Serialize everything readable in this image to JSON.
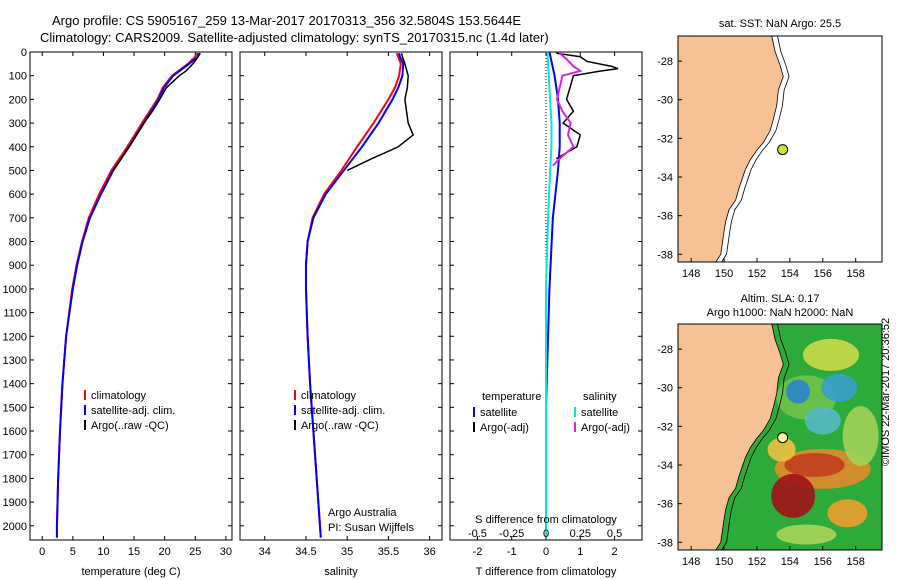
{
  "header": {
    "line1": "Argo profile: CS 5905167_259 13-Mar-2017 20170313_356 32.5804S 153.5644E",
    "line2": "Climatology: CARS2009. Satellite-adjusted climatology: synTS_20170315.nc (1.4d later)"
  },
  "colors": {
    "climatology": "#ff0000",
    "satellite": "#0000ff",
    "argo": "#000000",
    "sal_satellite": "#00e5e5",
    "sal_argo": "#e020e0",
    "land": "#f7c196",
    "map_bg": "#ffffff"
  },
  "chart_data": [
    {
      "type": "line",
      "xlabel": "temperature (deg C)",
      "ylabel": "",
      "xlim": [
        -2,
        31
      ],
      "ylim": [
        2060,
        0
      ],
      "x_ticks": [
        "0",
        "5",
        "10",
        "15",
        "20",
        "25",
        "30"
      ],
      "y_ticks": [
        "0",
        "100",
        "200",
        "300",
        "400",
        "500",
        "600",
        "700",
        "800",
        "900",
        "1000",
        "1100",
        "1200",
        "1300",
        "1400",
        "1500",
        "1600",
        "1700",
        "1800",
        "1900",
        "2000"
      ],
      "legend": [
        "climatology",
        "satellite-adj. clim.",
        "Argo(..raw -QC)"
      ],
      "series": [
        {
          "name": "climatology",
          "color": "red",
          "depth": [
            5,
            20,
            50,
            100,
            150,
            200,
            300,
            400,
            500,
            600,
            700,
            800,
            900,
            1000,
            1200,
            1400,
            1600,
            1800,
            2000,
            2050
          ],
          "values": [
            25.2,
            25.0,
            23.8,
            21.2,
            19.7,
            18.8,
            16.3,
            13.9,
            11.3,
            9.3,
            7.6,
            6.5,
            5.6,
            4.9,
            3.9,
            3.3,
            2.9,
            2.6,
            2.4,
            2.4
          ]
        },
        {
          "name": "satellite-adj. clim.",
          "color": "blue",
          "depth": [
            5,
            20,
            50,
            100,
            150,
            200,
            300,
            400,
            500,
            600,
            700,
            800,
            900,
            1000,
            1200,
            1400,
            1600,
            1800,
            2000,
            2050
          ],
          "values": [
            25.8,
            25.4,
            24.0,
            21.4,
            19.9,
            19.0,
            16.6,
            14.2,
            11.6,
            9.6,
            7.8,
            6.6,
            5.7,
            5.0,
            3.9,
            3.3,
            2.9,
            2.6,
            2.4,
            2.4
          ]
        },
        {
          "name": "Argo(..raw -QC)",
          "color": "black",
          "depth": [
            5,
            20,
            50,
            80,
            100,
            150,
            200,
            250,
            300,
            350,
            400,
            450,
            500
          ],
          "values": [
            25.4,
            25.5,
            24.6,
            23.5,
            22.4,
            20.3,
            19.2,
            18.0,
            16.6,
            15.4,
            14.2,
            12.9,
            11.6
          ]
        }
      ]
    },
    {
      "type": "line",
      "xlabel": "salinity",
      "xlim": [
        33.7,
        36.15
      ],
      "ylim": [
        2060,
        0
      ],
      "x_ticks": [
        "34",
        "34.5",
        "35",
        "35.5",
        "36"
      ],
      "legend": [
        "climatology",
        "satellite-adj. clim.",
        "Argo(..raw -QC)"
      ],
      "annotation": [
        "Argo Australia",
        "PI: Susan Wijffels"
      ],
      "series": [
        {
          "name": "climatology",
          "color": "red",
          "depth": [
            5,
            20,
            50,
            100,
            150,
            200,
            300,
            400,
            500,
            600,
            700,
            800,
            900,
            1000,
            1200,
            1400,
            1600,
            1800,
            2000,
            2050
          ],
          "values": [
            35.6,
            35.62,
            35.65,
            35.63,
            35.58,
            35.5,
            35.32,
            35.12,
            34.93,
            34.72,
            34.58,
            34.52,
            34.5,
            34.5,
            34.52,
            34.55,
            34.59,
            34.63,
            34.67,
            34.68
          ]
        },
        {
          "name": "satellite-adj. clim.",
          "color": "blue",
          "depth": [
            5,
            20,
            50,
            100,
            150,
            200,
            300,
            400,
            500,
            600,
            700,
            800,
            900,
            1000,
            1200,
            1400,
            1600,
            1800,
            2000,
            2050
          ],
          "values": [
            35.63,
            35.64,
            35.68,
            35.67,
            35.62,
            35.55,
            35.38,
            35.18,
            34.96,
            34.74,
            34.59,
            34.52,
            34.5,
            34.5,
            34.52,
            34.55,
            34.59,
            34.63,
            34.67,
            34.68
          ]
        },
        {
          "name": "Argo(..raw -QC)",
          "color": "black",
          "depth": [
            5,
            20,
            50,
            100,
            150,
            200,
            250,
            300,
            350,
            400,
            450,
            500
          ],
          "values": [
            35.66,
            35.67,
            35.7,
            35.74,
            35.73,
            35.7,
            35.72,
            35.74,
            35.8,
            35.62,
            35.3,
            35.0
          ]
        }
      ]
    },
    {
      "type": "line",
      "xlabel": "T difference from climatology",
      "x2label": "S difference from climatology",
      "xlim": [
        -2.8,
        2.8
      ],
      "ylim": [
        2060,
        0
      ],
      "x_ticks": [
        "-2",
        "-1",
        "0",
        "1",
        "2"
      ],
      "x2_ticks": [
        "-0.5",
        "-0.25",
        "0",
        "0.25",
        "0.5"
      ],
      "legend_headers": [
        "temperature",
        "salinity"
      ],
      "legend": [
        "satellite",
        "Argo(-adj)",
        "satellite",
        "Argo(-adj)"
      ],
      "series": [
        {
          "name": "T satellite",
          "color": "blue",
          "depth": [
            0,
            100,
            200,
            300,
            400,
            500,
            700,
            1000,
            1500,
            2050
          ],
          "values": [
            0.1,
            0.25,
            0.35,
            0.4,
            0.4,
            0.35,
            0.2,
            0.1,
            0.0,
            0.0
          ]
        },
        {
          "name": "T Argo(-adj)",
          "color": "black",
          "depth": [
            5,
            20,
            40,
            60,
            70,
            80,
            100,
            150,
            200,
            250,
            300,
            350,
            400,
            450
          ],
          "values": [
            0.3,
            1.0,
            1.2,
            1.9,
            2.1,
            1.6,
            0.8,
            0.7,
            0.6,
            0.8,
            0.5,
            1.0,
            0.9,
            0.3
          ]
        },
        {
          "name": "S satellite",
          "color": "cyan",
          "depth": [
            0,
            100,
            200,
            300,
            400,
            500,
            700,
            1000,
            1500,
            2050
          ],
          "values": [
            0.01,
            0.02,
            0.03,
            0.04,
            0.04,
            0.03,
            0.015,
            0.0,
            0.0,
            0.0
          ]
        },
        {
          "name": "S Argo(-adj)",
          "color": "magenta",
          "depth": [
            5,
            30,
            60,
            80,
            100,
            150,
            200,
            250,
            300,
            350,
            400,
            450,
            480
          ],
          "values": [
            0.1,
            0.15,
            0.2,
            0.25,
            0.12,
            0.1,
            0.08,
            0.12,
            0.18,
            0.16,
            0.2,
            0.1,
            0.05
          ]
        }
      ]
    }
  ],
  "map_top": {
    "title": "sat. SST: NaN Argo: 25.5",
    "lat_ticks": [
      "-28",
      "-30",
      "-32",
      "-34",
      "-36",
      "-38"
    ],
    "lon_ticks": [
      "148",
      "150",
      "152",
      "154",
      "156",
      "158"
    ],
    "marker": {
      "lon": 153.56,
      "lat": -32.58
    }
  },
  "map_bottom": {
    "title1": "Altim. SLA: 0.17",
    "title2": "Argo h1000: NaN h2000: NaN",
    "lat_ticks": [
      "-28",
      "-30",
      "-32",
      "-34",
      "-36",
      "-38"
    ],
    "lon_ticks": [
      "148",
      "150",
      "152",
      "154",
      "156",
      "158"
    ],
    "marker": {
      "lon": 153.56,
      "lat": -32.58
    }
  },
  "credit": "©IMOS 22-Mar-2017 20:36:52"
}
